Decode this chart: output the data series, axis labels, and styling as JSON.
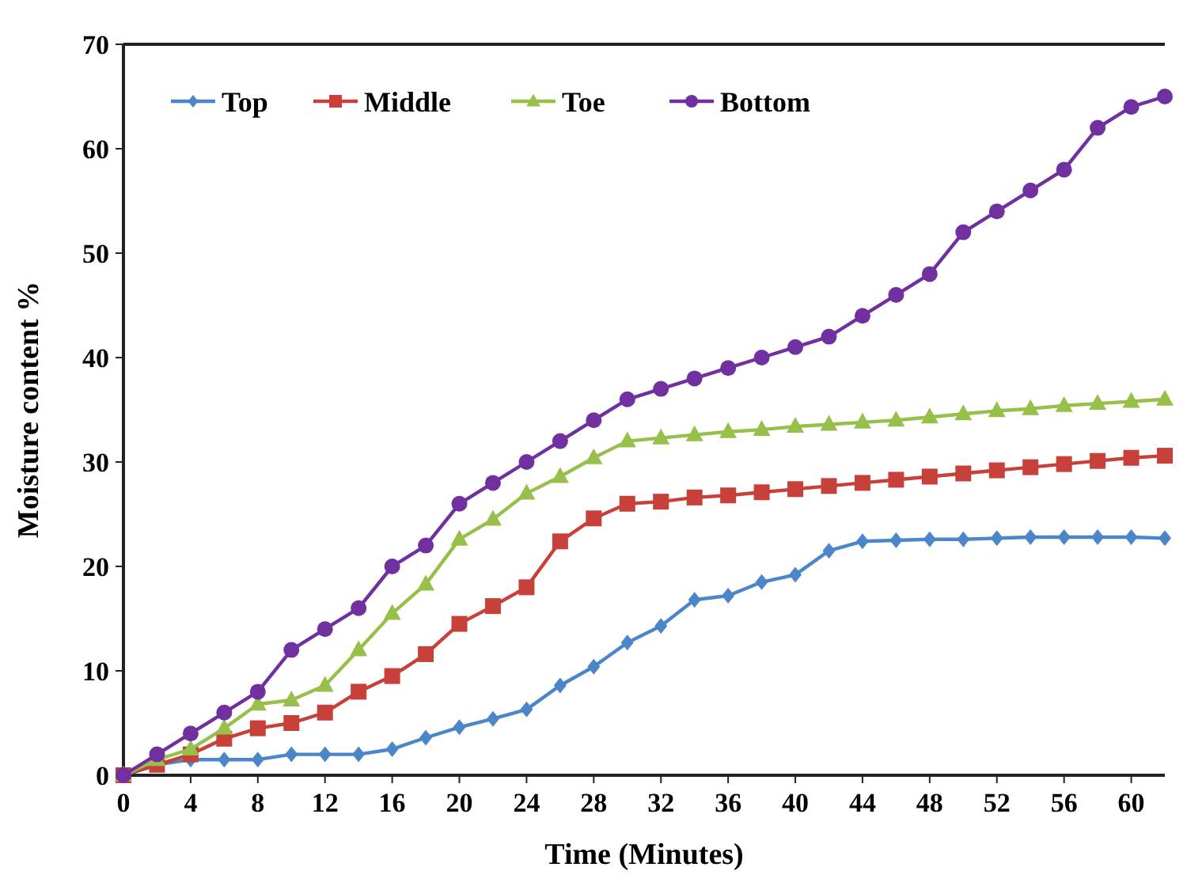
{
  "chart_data": {
    "type": "line",
    "xlabel": "Time (Minutes)",
    "ylabel": "Moisture content %",
    "x": [
      0,
      2,
      4,
      6,
      8,
      10,
      12,
      14,
      16,
      18,
      20,
      22,
      24,
      26,
      28,
      30,
      32,
      34,
      36,
      38,
      40,
      42,
      44,
      46,
      48,
      50,
      52,
      54,
      56,
      58,
      60,
      62
    ],
    "xlim": [
      0,
      62
    ],
    "xticks": [
      0,
      4,
      8,
      12,
      16,
      20,
      24,
      28,
      32,
      36,
      40,
      44,
      48,
      52,
      56,
      60
    ],
    "ylim": [
      0,
      70
    ],
    "yticks": [
      0,
      10,
      20,
      30,
      40,
      50,
      60,
      70
    ],
    "legend": "top left",
    "grid": false,
    "series": [
      {
        "name": "Top",
        "color": "#4a86c8",
        "marker": "diamond",
        "values": [
          0,
          1,
          1.5,
          1.5,
          1.5,
          2,
          2,
          2,
          2.5,
          3.6,
          4.6,
          5.4,
          6.3,
          8.6,
          10.4,
          12.7,
          14.3,
          16.8,
          17.2,
          18.5,
          19.2,
          21.5,
          22.4,
          22.5,
          22.6,
          22.6,
          22.7,
          22.8,
          22.8,
          22.8,
          22.8,
          22.7
        ]
      },
      {
        "name": "Middle",
        "color": "#c8403a",
        "marker": "square",
        "values": [
          0,
          1,
          2,
          3.5,
          4.5,
          5,
          6,
          8,
          9.5,
          11.6,
          14.5,
          16.2,
          18,
          22.4,
          24.6,
          26,
          26.2,
          26.6,
          26.8,
          27.1,
          27.4,
          27.7,
          28,
          28.3,
          28.6,
          28.9,
          29.2,
          29.5,
          29.8,
          30.1,
          30.4,
          30.6
        ]
      },
      {
        "name": "Toe",
        "color": "#96c04a",
        "marker": "triangle",
        "values": [
          0,
          1.5,
          2.5,
          4.5,
          6.8,
          7.2,
          8.6,
          12,
          15.5,
          18.3,
          22.6,
          24.5,
          27,
          28.6,
          30.4,
          32,
          32.3,
          32.6,
          32.9,
          33.1,
          33.4,
          33.6,
          33.8,
          34,
          34.3,
          34.6,
          34.9,
          35.1,
          35.4,
          35.6,
          35.8,
          36
        ]
      },
      {
        "name": "Bottom",
        "color": "#7030a0",
        "marker": "circle",
        "values": [
          0,
          2,
          4,
          6,
          8,
          12,
          14,
          16,
          20,
          22,
          26,
          28,
          30,
          32,
          34,
          36,
          37,
          38,
          39,
          40,
          41,
          42,
          44,
          46,
          48,
          52,
          54,
          56,
          58,
          62,
          64,
          65
        ]
      }
    ]
  }
}
